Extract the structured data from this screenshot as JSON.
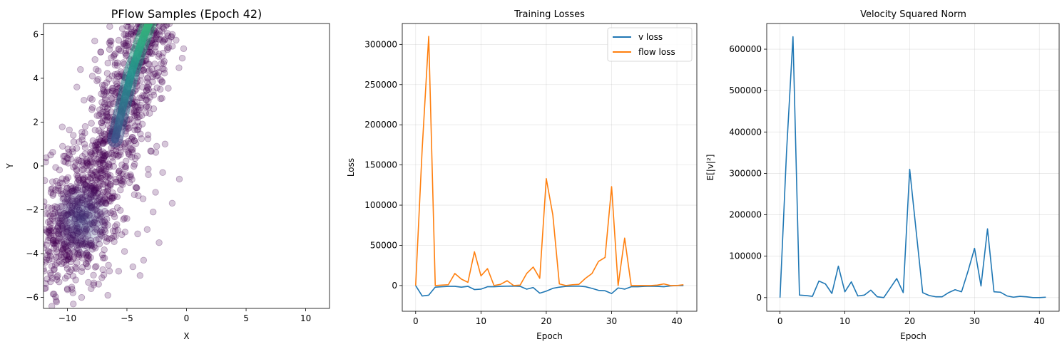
{
  "chart_data": [
    {
      "type": "scatter",
      "title": "PFlow Samples (Epoch 42)",
      "xlabel": "X",
      "ylabel": "Y",
      "xlim": [
        -12,
        12
      ],
      "ylim": [
        -6.5,
        6.5
      ],
      "xticks": [
        -10,
        -5,
        0,
        5,
        10
      ],
      "yticks": [
        -6,
        -4,
        -2,
        0,
        2,
        4,
        6
      ],
      "grid": false,
      "point_color": "#440154",
      "point_alpha": 0.22,
      "density_colors": [
        "#3b528b",
        "#21918c",
        "#35b779"
      ],
      "clusters": [
        {
          "x": [
            -2.8,
            6.5
          ],
          "y_center_at": "band",
          "desc_x": [
            -12,
            -2
          ],
          "spread": 1.2
        },
        {
          "x_center": -9.0,
          "y_center": -2.5
        }
      ],
      "sample_points": [
        [
          -5.2,
          5.5
        ],
        [
          -4.6,
          6.1
        ],
        [
          -3.9,
          6.3
        ],
        [
          -6.1,
          5.0
        ],
        [
          -5.8,
          4.2
        ],
        [
          -6.7,
          3.8
        ],
        [
          -7.1,
          2.9
        ],
        [
          -6.3,
          3.1
        ],
        [
          -4.4,
          4.9
        ],
        [
          -3.6,
          5.2
        ],
        [
          -2.9,
          4.4
        ],
        [
          -3.3,
          3.6
        ],
        [
          -4.1,
          2.7
        ],
        [
          -5.0,
          2.1
        ],
        [
          -5.9,
          1.6
        ],
        [
          -6.8,
          1.1
        ],
        [
          -7.6,
          0.7
        ],
        [
          -8.4,
          0.3
        ],
        [
          -9.2,
          -0.2
        ],
        [
          -10.1,
          -0.6
        ],
        [
          -11.0,
          -1.1
        ],
        [
          -11.6,
          -1.9
        ],
        [
          -10.6,
          -2.4
        ],
        [
          -9.6,
          -2.9
        ],
        [
          -8.7,
          -3.3
        ],
        [
          -7.9,
          -3.8
        ],
        [
          -7.0,
          -4.2
        ],
        [
          -9.9,
          -3.9
        ],
        [
          -11.2,
          -3.5
        ],
        [
          -11.8,
          -4.3
        ],
        [
          -10.8,
          -5.0
        ],
        [
          -9.3,
          -5.2
        ],
        [
          -8.0,
          -5.6
        ],
        [
          -6.6,
          -5.9
        ],
        [
          -11.9,
          -5.6
        ],
        [
          -10.9,
          -6.2
        ],
        [
          -9.5,
          -6.3
        ],
        [
          -3.2,
          -0.4
        ],
        [
          -2.0,
          -0.3
        ],
        [
          -1.2,
          -1.7
        ],
        [
          -0.6,
          -0.6
        ],
        [
          -2.3,
          -3.5
        ],
        [
          -3.6,
          -4.3
        ],
        [
          -2.8,
          -2.1
        ],
        [
          -4.2,
          -1.0
        ],
        [
          -5.3,
          -0.6
        ],
        [
          -6.2,
          0.2
        ],
        [
          -7.3,
          -0.9
        ],
        [
          -8.2,
          -1.5
        ],
        [
          -9.0,
          -2.0
        ],
        [
          -8.5,
          1.8
        ],
        [
          -9.5,
          1.4
        ],
        [
          -10.4,
          0.9
        ],
        [
          -11.4,
          0.5
        ],
        [
          -7.5,
          2.3
        ],
        [
          -8.6,
          3.0
        ],
        [
          -7.9,
          4.1
        ],
        [
          -8.9,
          4.4
        ],
        [
          -9.2,
          3.6
        ],
        [
          -6.4,
          5.7
        ],
        [
          -7.2,
          5.2
        ],
        [
          -2.2,
          3.5
        ],
        [
          -2.6,
          5.6
        ],
        [
          -3.4,
          4.8
        ],
        [
          -4.8,
          3.3
        ],
        [
          -5.5,
          2.6
        ],
        [
          -4.0,
          1.8
        ],
        [
          -3.1,
          2.4
        ],
        [
          -1.8,
          1.0
        ],
        [
          -2.5,
          0.9
        ],
        [
          -4.6,
          0.4
        ],
        [
          -5.8,
          -1.9
        ],
        [
          -6.9,
          -2.5
        ],
        [
          -7.7,
          -2.0
        ],
        [
          -6.1,
          -3.2
        ],
        [
          -5.2,
          -3.9
        ],
        [
          -4.5,
          -4.6
        ],
        [
          -3.9,
          -5.0
        ],
        [
          -8.3,
          -4.6
        ],
        [
          -7.1,
          -5.1
        ],
        [
          -10.3,
          -4.4
        ],
        [
          -11.5,
          -2.8
        ],
        [
          -10.0,
          -1.5
        ],
        [
          -9.1,
          -1.0
        ],
        [
          -7.9,
          -0.2
        ],
        [
          -6.6,
          -1.3
        ],
        [
          -5.0,
          -2.4
        ],
        [
          -3.3,
          -2.9
        ],
        [
          -2.6,
          -1.2
        ],
        [
          -4.1,
          -3.1
        ],
        [
          -8.8,
          -6.0
        ],
        [
          -11.3,
          -6.4
        ],
        [
          -6.0,
          4.6
        ],
        [
          -5.4,
          3.9
        ],
        [
          -4.9,
          5.7
        ],
        [
          -3.0,
          6.2
        ]
      ]
    },
    {
      "type": "line",
      "title": "Training Losses",
      "xlabel": "Epoch",
      "ylabel": "Loss",
      "xlim": [
        -2.05,
        43.05
      ],
      "ylim": [
        -32000,
        326000
      ],
      "xticks": [
        0,
        10,
        20,
        30,
        40
      ],
      "yticks": [
        0,
        50000,
        100000,
        150000,
        200000,
        250000,
        300000
      ],
      "grid": true,
      "legend": "top-right",
      "x": [
        0,
        1,
        2,
        3,
        4,
        5,
        6,
        7,
        8,
        9,
        10,
        11,
        12,
        13,
        14,
        15,
        16,
        17,
        18,
        19,
        20,
        21,
        22,
        23,
        24,
        25,
        26,
        27,
        28,
        29,
        30,
        31,
        32,
        33,
        34,
        35,
        36,
        37,
        38,
        39,
        40,
        41
      ],
      "series": [
        {
          "name": "v loss",
          "color": "#1f77b4",
          "values": [
            0,
            -13000,
            -12000,
            -2000,
            -1500,
            -1000,
            -1000,
            -2000,
            -1000,
            -5000,
            -4500,
            -1500,
            -1500,
            -1000,
            -800,
            -700,
            -1000,
            -4500,
            -2500,
            -9500,
            -7000,
            -3500,
            -2000,
            -1000,
            -800,
            -700,
            -1500,
            -3500,
            -6000,
            -6500,
            -10000,
            -3000,
            -4500,
            -1500,
            -1500,
            -1000,
            -800,
            -1000,
            -1500,
            -500,
            0,
            0
          ]
        },
        {
          "name": "flow loss",
          "color": "#ff7f0e",
          "values": [
            0,
            170000,
            310000,
            0,
            500,
            1000,
            15000,
            8000,
            4000,
            42000,
            12000,
            21000,
            0,
            1500,
            6000,
            0,
            500,
            15000,
            23000,
            9000,
            133000,
            88000,
            2000,
            0,
            1000,
            1500,
            9000,
            15000,
            30000,
            35000,
            123000,
            0,
            59000,
            0,
            0,
            0,
            0,
            500,
            2000,
            0,
            0,
            1000
          ]
        }
      ]
    },
    {
      "type": "line",
      "title": "Velocity Squared Norm",
      "xlabel": "Epoch",
      "ylabel": "E[|v|²]",
      "xlim": [
        -2.05,
        43.05
      ],
      "ylim": [
        -33000,
        662000
      ],
      "xticks": [
        0,
        10,
        20,
        30,
        40
      ],
      "yticks": [
        0,
        100000,
        200000,
        300000,
        400000,
        500000,
        600000
      ],
      "grid": true,
      "x": [
        0,
        1,
        2,
        3,
        4,
        5,
        6,
        7,
        8,
        9,
        10,
        11,
        12,
        13,
        14,
        15,
        16,
        17,
        18,
        19,
        20,
        21,
        22,
        23,
        24,
        25,
        26,
        27,
        28,
        29,
        30,
        31,
        32,
        33,
        34,
        35,
        36,
        37,
        38,
        39,
        40,
        41
      ],
      "series": [
        {
          "color": "#1f77b4",
          "values": [
            0,
            350000,
            630000,
            6000,
            5000,
            3000,
            40000,
            33000,
            10000,
            76000,
            14000,
            38000,
            4000,
            6000,
            18000,
            2000,
            0,
            23000,
            46000,
            12000,
            310000,
            160000,
            12000,
            5000,
            2000,
            2000,
            12000,
            19000,
            14000,
            64000,
            119000,
            28000,
            166000,
            14000,
            13000,
            4000,
            1000,
            3000,
            2000,
            0,
            0,
            1000
          ]
        }
      ]
    }
  ]
}
